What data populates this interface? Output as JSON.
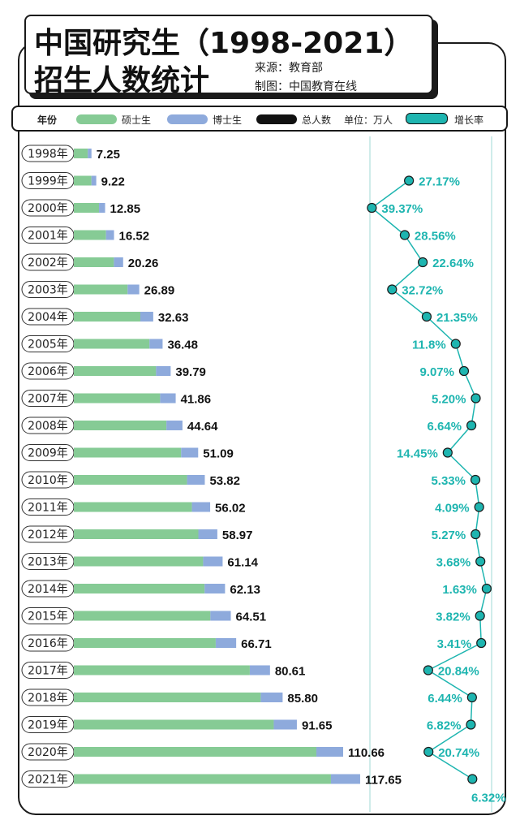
{
  "title": {
    "line1": "中国研究生（1998-2021）",
    "line2": "招生人数统计",
    "source": "来源：教育部",
    "credit": "制图：中国教育在线"
  },
  "legend": {
    "year_label": "年份",
    "masters_label": "硕士生",
    "doctoral_label": "博士生",
    "total_label": "总人数",
    "unit_label": "单位：万人",
    "growth_label": "增长率"
  },
  "colors": {
    "masters": "#86cb95",
    "doctoral": "#8eaadc",
    "total": "#111111",
    "growth": "#1eb5b0"
  },
  "chart_data": {
    "type": "bar",
    "stacked": true,
    "orientation": "horizontal",
    "categories": [
      "1998年",
      "1999年",
      "2000年",
      "2001年",
      "2002年",
      "2003年",
      "2004年",
      "2005年",
      "2006年",
      "2007年",
      "2008年",
      "2009年",
      "2010年",
      "2011年",
      "2012年",
      "2013年",
      "2014年",
      "2015年",
      "2016年",
      "2017年",
      "2018年",
      "2019年",
      "2020年",
      "2021年"
    ],
    "series": [
      {
        "name": "硕士生",
        "values": [
          5.75,
          7.22,
          10.35,
          13.22,
          16.46,
          22.09,
          27.33,
          31.08,
          33.79,
          35.46,
          38.04,
          44.09,
          46.52,
          48.52,
          51.17,
          53.14,
          53.73,
          56.11,
          58.31,
          72.31,
          76.8,
          82.15,
          99.66,
          105.65
        ]
      },
      {
        "name": "博士生",
        "values": [
          1.5,
          2.0,
          2.5,
          3.3,
          3.8,
          4.8,
          5.3,
          5.4,
          6.0,
          6.4,
          6.6,
          7.0,
          7.3,
          7.5,
          7.8,
          8.0,
          8.4,
          8.4,
          8.4,
          8.3,
          9.0,
          9.5,
          11.0,
          12.0
        ]
      }
    ],
    "totals_label": "总人数",
    "totals": [
      "7.25",
      "9.22",
      "12.85",
      "16.52",
      "20.26",
      "26.89",
      "32.63",
      "36.48",
      "39.79",
      "41.86",
      "44.64",
      "51.09",
      "53.82",
      "56.02",
      "58.97",
      "61.14",
      "62.13",
      "64.51",
      "66.71",
      "80.61",
      "85.80",
      "91.65",
      "110.66",
      "117.65"
    ],
    "growth_label": "增长率",
    "growth_rate": [
      null,
      "27.17%",
      "39.37%",
      "28.56%",
      "22.64%",
      "32.72%",
      "21.35%",
      "11.8%",
      "9.07%",
      "5.20%",
      "6.64%",
      "14.45%",
      "5.33%",
      "4.09%",
      "5.27%",
      "3.68%",
      "1.63%",
      "3.82%",
      "3.41%",
      "20.84%",
      "6.44%",
      "6.82%",
      "20.74%",
      "6.32%"
    ],
    "growth_values": [
      null,
      27.17,
      39.37,
      28.56,
      22.64,
      32.72,
      21.35,
      11.8,
      9.07,
      5.2,
      6.64,
      14.45,
      5.33,
      4.09,
      5.27,
      3.68,
      1.63,
      3.82,
      3.41,
      20.84,
      6.44,
      6.82,
      20.74,
      6.32
    ],
    "unit": "单位：万人"
  }
}
